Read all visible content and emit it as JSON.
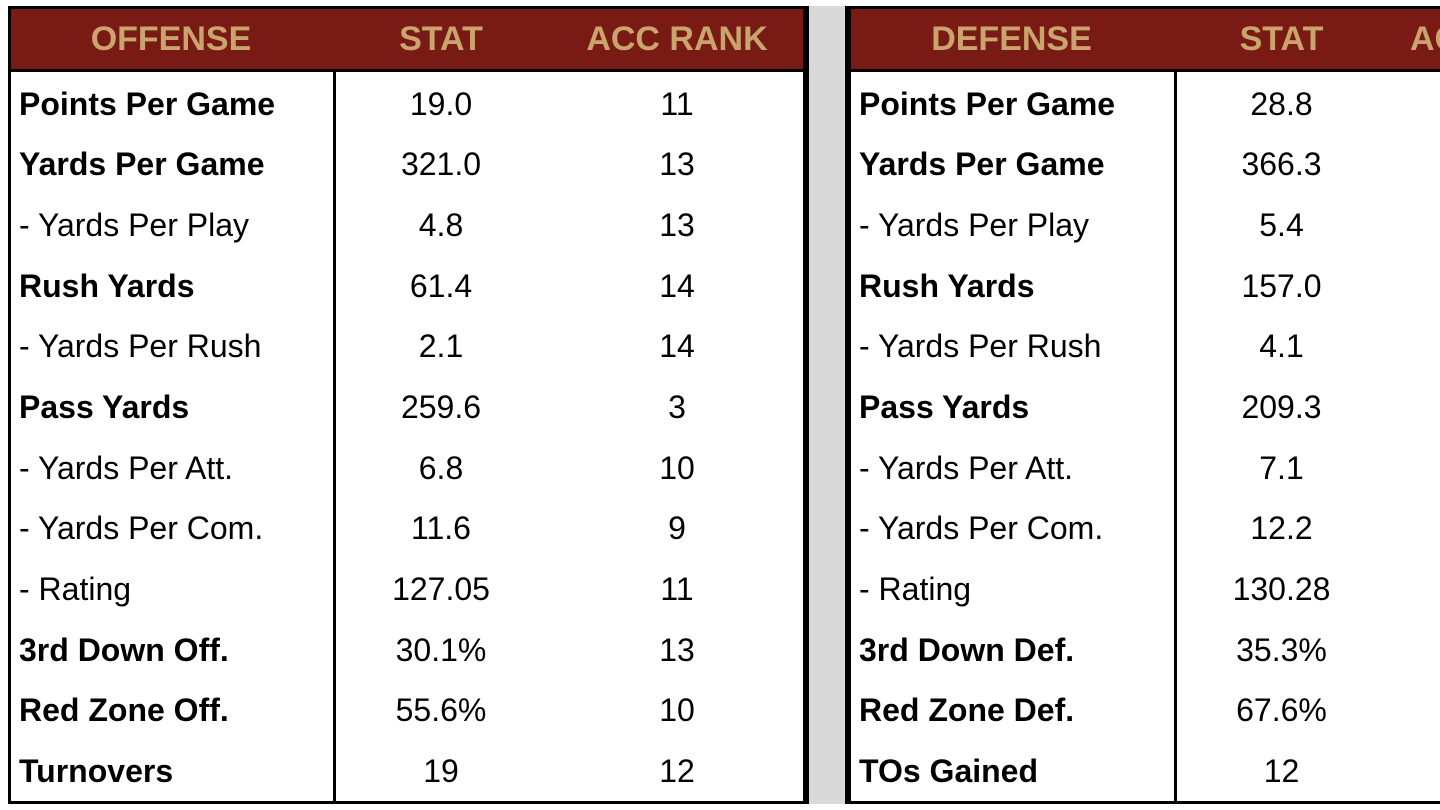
{
  "offense": {
    "header": [
      "OFFENSE",
      "STAT",
      "ACC RANK"
    ],
    "rows": [
      [
        "Points Per Game",
        "19.0",
        "11"
      ],
      [
        "Yards Per Game",
        "321.0",
        "13"
      ],
      [
        "- Yards Per Play",
        "4.8",
        "13"
      ],
      [
        "Rush Yards",
        "61.4",
        "14"
      ],
      [
        "- Yards Per Rush",
        "2.1",
        "14"
      ],
      [
        "Pass Yards",
        "259.6",
        "3"
      ],
      [
        "- Yards Per Att.",
        "6.8",
        "10"
      ],
      [
        "- Yards Per Com.",
        "11.6",
        "9"
      ],
      [
        "- Rating",
        "127.05",
        "11"
      ],
      [
        "3rd Down Off.",
        "30.1%",
        "13"
      ],
      [
        "Red Zone Off.",
        "55.6%",
        "10"
      ],
      [
        "Turnovers",
        "19",
        "12"
      ]
    ]
  },
  "defense": {
    "header": [
      "DEFENSE",
      "STAT",
      "AC"
    ],
    "rows": [
      [
        "Points Per Game",
        "28.8"
      ],
      [
        "Yards Per Game",
        "366.3"
      ],
      [
        "- Yards Per Play",
        "5.4"
      ],
      [
        "Rush Yards",
        "157.0"
      ],
      [
        "- Yards Per Rush",
        "4.1"
      ],
      [
        "Pass Yards",
        "209.3"
      ],
      [
        "- Yards Per Att.",
        "7.1"
      ],
      [
        "- Yards Per Com.",
        "12.2"
      ],
      [
        "- Rating",
        "130.28"
      ],
      [
        "3rd Down Def.",
        "35.3%"
      ],
      [
        "Red Zone Def.",
        "67.6%"
      ],
      [
        "TOs Gained",
        "12"
      ]
    ]
  }
}
